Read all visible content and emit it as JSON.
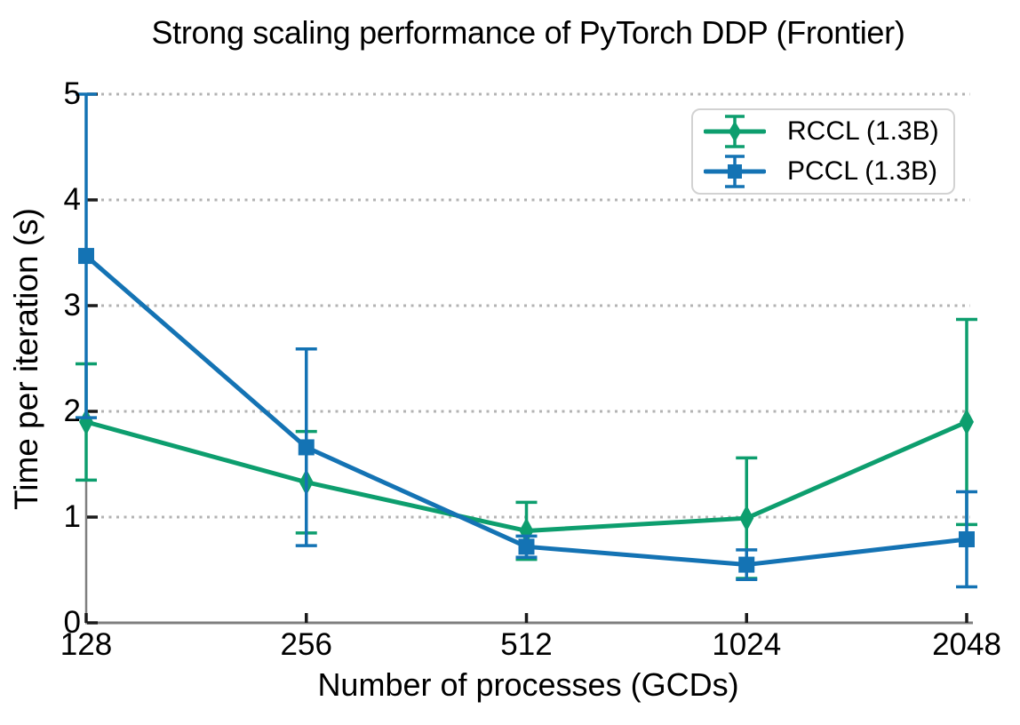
{
  "chart_data": {
    "type": "line",
    "title": "Strong scaling performance of PyTorch DDP (Frontier)",
    "xlabel": "Number of processes (GCDs)",
    "ylabel": "Time per iteration (s)",
    "categories": [
      "128",
      "256",
      "512",
      "1024",
      "2048"
    ],
    "x_scale": "categorical-log2-spacing",
    "ylim": [
      0,
      5
    ],
    "y_ticks": [
      0,
      1,
      2,
      3,
      4,
      5
    ],
    "grid": {
      "axis": "y",
      "style": "dotted",
      "color": "#b3b3b3"
    },
    "legend": {
      "position": "upper-right"
    },
    "series": [
      {
        "name": "RCCL (1.3B)",
        "color": "#0d9e6e",
        "marker": "thin-diamond",
        "values": [
          1.9,
          1.33,
          0.87,
          0.99,
          1.9
        ],
        "yerr": [
          0.55,
          0.48,
          0.27,
          0.57,
          0.97
        ]
      },
      {
        "name": "PCCL (1.3B)",
        "color": "#1473b4",
        "marker": "square",
        "values": [
          3.47,
          1.66,
          0.72,
          0.55,
          0.79
        ],
        "yerr": [
          1.53,
          0.93,
          0.1,
          0.14,
          0.45
        ]
      }
    ]
  },
  "colors": {
    "background": "#ffffff",
    "axis": "#7f7f7f",
    "tick": "#1a1a1a",
    "text": "#000000",
    "grid": "#b3b3b3",
    "legend_border": "#d2d2d2"
  }
}
